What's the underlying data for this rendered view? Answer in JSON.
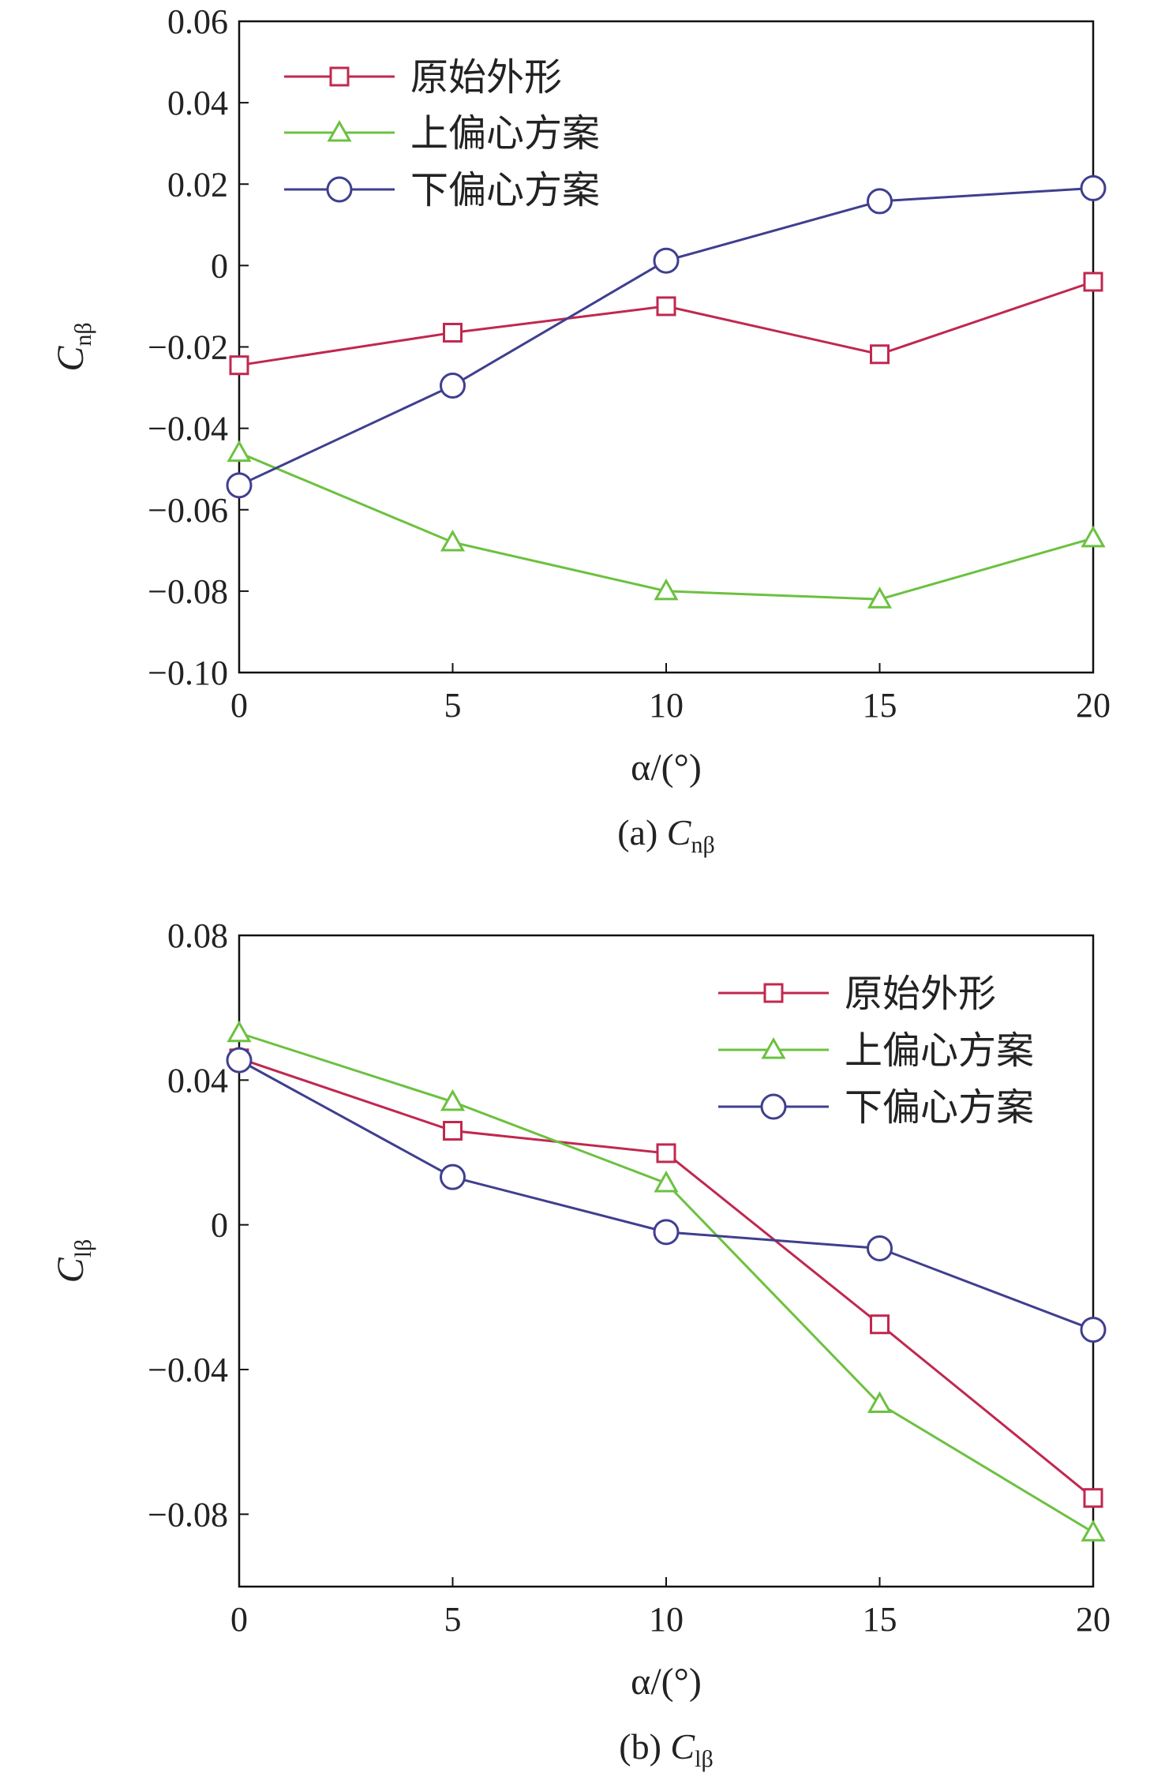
{
  "chart_data": [
    {
      "type": "line",
      "caption": "(a) C",
      "caption_sub": "nβ",
      "xlabel": "α/(°)",
      "ylabel": "C",
      "ylabel_sub": "nβ",
      "x": [
        0,
        5,
        10,
        15,
        20
      ],
      "xlim": [
        0,
        20
      ],
      "ylim": [
        -0.1,
        0.06
      ],
      "xticks": [
        "0",
        "5",
        "10",
        "15",
        "20"
      ],
      "yticks": [
        "0.06",
        "0.04",
        "0.02",
        "0",
        "−0.02",
        "−0.04",
        "−0.06",
        "−0.08",
        "−0.10"
      ],
      "ytick_values": [
        0.06,
        0.04,
        0.02,
        0,
        -0.02,
        -0.04,
        -0.06,
        -0.08,
        -0.1
      ],
      "legend_position": "top-left",
      "grid": false,
      "series": [
        {
          "name": "原始外形",
          "marker": "square",
          "color": "#c0284f",
          "values": [
            -0.0245,
            -0.0165,
            -0.01,
            -0.0218,
            -0.004
          ]
        },
        {
          "name": "上偏心方案",
          "marker": "triangle",
          "color": "#6cc140",
          "values": [
            -0.046,
            -0.068,
            -0.08,
            -0.082,
            -0.067
          ]
        },
        {
          "name": "下偏心方案",
          "marker": "circle",
          "color": "#3f3f8f",
          "values": [
            -0.054,
            -0.0295,
            0.0012,
            0.0158,
            0.019
          ]
        }
      ]
    },
    {
      "type": "line",
      "caption": "(b) C",
      "caption_sub": "lβ",
      "xlabel": "α/(°)",
      "ylabel": "C",
      "ylabel_sub": "lβ",
      "x": [
        0,
        5,
        10,
        15,
        20
      ],
      "xlim": [
        0,
        20
      ],
      "ylim": [
        -0.1,
        0.08
      ],
      "xticks": [
        "0",
        "5",
        "10",
        "15",
        "20"
      ],
      "yticks": [
        "0.08",
        "0.04",
        "0",
        "−0.04",
        "−0.08"
      ],
      "ytick_values": [
        0.08,
        0.04,
        0,
        -0.04,
        -0.08
      ],
      "legend_position": "top-right",
      "grid": false,
      "series": [
        {
          "name": "原始外形",
          "marker": "square",
          "color": "#c0284f",
          "values": [
            0.046,
            0.026,
            0.0198,
            -0.0275,
            -0.0755
          ]
        },
        {
          "name": "上偏心方案",
          "marker": "triangle",
          "color": "#6cc140",
          "values": [
            0.053,
            0.034,
            0.0115,
            -0.0495,
            -0.085
          ]
        },
        {
          "name": "下偏心方案",
          "marker": "circle",
          "color": "#3f3f8f",
          "values": [
            0.0455,
            0.0132,
            -0.002,
            -0.0065,
            -0.029
          ]
        }
      ]
    }
  ]
}
